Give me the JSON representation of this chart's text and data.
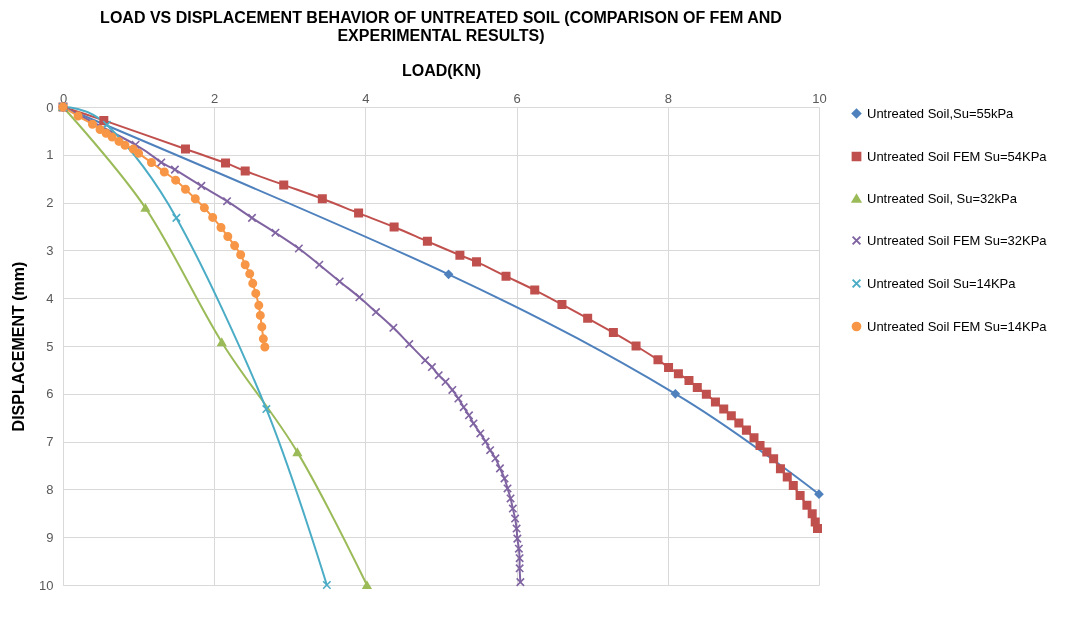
{
  "chart_data": {
    "type": "line",
    "title": "LOAD VS DISPLACEMENT BEHAVIOR OF UNTREATED SOIL (COMPARISON OF FEM AND EXPERIMENTAL RESULTS)",
    "xlabel": "LOAD(KN)",
    "ylabel": "DISPLACEMENT (mm)",
    "xlim": [
      0,
      10
    ],
    "xticks": [
      0,
      2,
      4,
      6,
      8,
      10
    ],
    "ylim": [
      10,
      0
    ],
    "yticks": [
      0,
      1,
      2,
      3,
      4,
      5,
      6,
      7,
      8,
      9,
      10
    ],
    "grid": true,
    "legend": "right",
    "line_style": "solid",
    "series": [
      {
        "name": "Untreated Soil,Su=55kPa",
        "color": "#4f81bd",
        "marker": "diamond",
        "x": [
          0,
          5.1,
          8.1,
          10
        ],
        "values": [
          0,
          3.5,
          6.0,
          8.1
        ]
      },
      {
        "name": "Untreated Soil FEM Su=54KPa",
        "color": "#c0504d",
        "marker": "square",
        "x": [
          0,
          0.54,
          1.62,
          2.15,
          2.41,
          2.92,
          3.43,
          3.91,
          4.38,
          4.82,
          5.25,
          5.47,
          5.86,
          6.24,
          6.6,
          6.94,
          7.28,
          7.58,
          7.87,
          8.01,
          8.14,
          8.28,
          8.39,
          8.51,
          8.63,
          8.74,
          8.84,
          8.94,
          9.04,
          9.14,
          9.22,
          9.31,
          9.4,
          9.49,
          9.58,
          9.66,
          9.75,
          9.84,
          9.91,
          9.95,
          9.98
        ],
        "values": [
          0,
          0.28,
          0.88,
          1.17,
          1.34,
          1.63,
          1.92,
          2.22,
          2.51,
          2.81,
          3.1,
          3.24,
          3.54,
          3.83,
          4.13,
          4.42,
          4.72,
          5.0,
          5.29,
          5.45,
          5.58,
          5.72,
          5.87,
          6.01,
          6.17,
          6.32,
          6.46,
          6.61,
          6.76,
          6.92,
          7.08,
          7.22,
          7.36,
          7.57,
          7.74,
          7.92,
          8.13,
          8.33,
          8.51,
          8.68,
          8.82
        ]
      },
      {
        "name": "Untreated Soil, Su=32kPa",
        "color": "#9bbb59",
        "marker": "triangle",
        "x": [
          0,
          1.09,
          2.1,
          3.1,
          4.02
        ],
        "values": [
          0,
          2.11,
          4.92,
          7.22,
          10
        ]
      },
      {
        "name": "Untreated Soil FEM Su=32KPa",
        "color": "#8064a2",
        "marker": "cross",
        "x": [
          0,
          0.96,
          1.3,
          1.48,
          1.83,
          2.17,
          2.5,
          2.81,
          3.12,
          3.39,
          3.66,
          3.92,
          4.14,
          4.37,
          4.58,
          4.79,
          4.88,
          4.97,
          5.06,
          5.15,
          5.23,
          5.3,
          5.37,
          5.43,
          5.52,
          5.59,
          5.65,
          5.72,
          5.78,
          5.84,
          5.88,
          5.92,
          5.95,
          5.98,
          6.0,
          6.01,
          6.03,
          6.04,
          6.04,
          6.05
        ],
        "values": [
          0,
          0.79,
          1.16,
          1.31,
          1.65,
          1.97,
          2.32,
          2.63,
          2.96,
          3.3,
          3.65,
          3.98,
          4.29,
          4.62,
          4.96,
          5.3,
          5.44,
          5.61,
          5.75,
          5.92,
          6.1,
          6.28,
          6.45,
          6.62,
          6.83,
          7.0,
          7.18,
          7.35,
          7.56,
          7.77,
          7.98,
          8.19,
          8.4,
          8.61,
          8.82,
          9.03,
          9.24,
          9.44,
          9.65,
          9.94
        ]
      },
      {
        "name": "Untreated Soil Su=14KPa",
        "color": "#4bacc6",
        "marker": "cross",
        "x": [
          0,
          0.58,
          1.5,
          2.69,
          3.49
        ],
        "values": [
          0,
          0.37,
          2.32,
          6.32,
          10
        ]
      },
      {
        "name": "Untreated Soil FEM Su=14KPa",
        "color": "#f79646",
        "marker": "circle",
        "x": [
          0,
          0.2,
          0.39,
          0.49,
          0.57,
          0.65,
          0.74,
          0.82,
          0.93,
          1.0,
          1.17,
          1.34,
          1.49,
          1.62,
          1.75,
          1.87,
          1.98,
          2.09,
          2.18,
          2.27,
          2.35,
          2.41,
          2.47,
          2.51,
          2.55,
          2.59,
          2.61,
          2.63,
          2.65,
          2.67
        ],
        "values": [
          0,
          0.19,
          0.36,
          0.47,
          0.55,
          0.63,
          0.72,
          0.8,
          0.88,
          0.97,
          1.16,
          1.36,
          1.53,
          1.72,
          1.92,
          2.11,
          2.31,
          2.52,
          2.71,
          2.9,
          3.09,
          3.3,
          3.49,
          3.69,
          3.9,
          4.15,
          4.36,
          4.6,
          4.85,
          5.02
        ]
      }
    ]
  }
}
